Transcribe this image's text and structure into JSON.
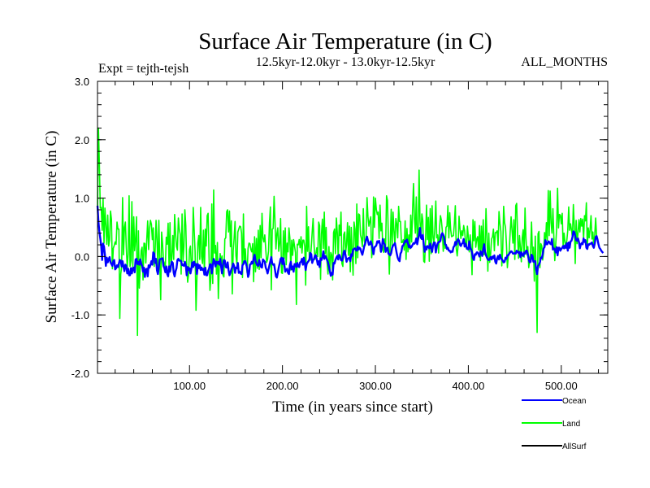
{
  "chart_data": {
    "type": "line",
    "title": "Surface Air Temperature (in C)",
    "subtitle_left": "Expt = tejth-tejsh",
    "subtitle_center": "12.5kyr-12.0kyr - 13.0kyr-12.5kyr",
    "subtitle_right": "ALL_MONTHS",
    "xlabel": "Time (in years since start)",
    "ylabel": "Surface Air Temperature (in C)",
    "xlim": [
      1,
      550
    ],
    "ylim": [
      -2.0,
      3.0
    ],
    "x_ticks": [
      100,
      200,
      300,
      400,
      500
    ],
    "x_tick_labels": [
      "100.00",
      "200.00",
      "300.00",
      "400.00",
      "500.00"
    ],
    "y_ticks": [
      -2.0,
      -1.0,
      0.0,
      1.0,
      2.0,
      3.0
    ],
    "y_tick_labels": [
      "-2.0",
      "-1.0",
      "0.0",
      "1.0",
      "2.0",
      "3.0"
    ],
    "legend_position": "bottom-right",
    "x_start": 1,
    "x_step": 1,
    "series": [
      {
        "name": "Land",
        "color": "#00ff00",
        "values": [
          0.79,
          2.2,
          1.6,
          0.83,
          0.84,
          0.45,
          1.0,
          0.23,
          0.83,
          0.54,
          0.21,
          0.71,
          0.18,
          0.28,
          0.78,
          0.64,
          -0.21,
          0.14,
          0.19,
          0.25,
          0.21,
          0.59,
          0.47,
          0.47,
          -1.06,
          -0.3,
          -0.17,
          1.01,
          0.03,
          0.5,
          0.59,
          0.15,
          -0.19,
          0.04,
          1.04,
          -0.17,
          -0.07,
          0.94,
          -0.2,
          0.68,
          0.1,
          0.3,
          0.68,
          -1.35,
          0.44,
          -0.54,
          -0.19,
          0.1,
          0.16,
          -0.4,
          0.23,
          0.22,
          -0.11,
          0.29,
          0.61,
          0.12,
          0.48,
          0.62,
          0.55,
          0.29,
          0.49,
          -0.17,
          0.1,
          0.62,
          0.28,
          -0.2,
          0.62,
          -0.1,
          -0.74,
          0.42,
          0.23,
          -0.07,
          -0.12,
          -0.18,
          0.33,
          0.21,
          0.57,
          -0.19,
          0.58,
          -0.23,
          -0.01,
          0.36,
          -0.05,
          0.72,
          0.4,
          0.17,
          0.11,
          0.66,
          0.47,
          0.38,
          -0.3,
          0.73,
          -0.08,
          0.17,
          0.8,
          0.53,
          -0.15,
          -0.44,
          -0.31,
          0.12,
          0.18,
          -0.18,
          -0.15,
          0.84,
          0.45,
          0.09,
          -0.92,
          -0.36,
          0.23,
          0.36,
          -0.05,
          0.84,
          0.0,
          -0.12,
          0.45,
          -0.31,
          0.47,
          0.18,
          0.7,
          0.74,
          0.0,
          -0.58,
          -0.36,
          0.9,
          -0.46,
          1.14,
          0.06,
          0.19,
          -0.3,
          0.24,
          -0.72,
          -0.17,
          0.05,
          -0.12,
          0.01,
          -0.32,
          -0.35,
          0.3,
          0.32,
          0.77,
          0.8,
          0.42,
          0.78,
          0.17,
          0.61,
          -0.64,
          0.1,
          0.31,
          0.6,
          0.01,
          -0.13,
          0.42,
          0.47,
          0.52,
          0.51,
          0.4,
          -0.36,
          0.73,
          -0.1,
          0.13,
          -0.14,
          -0.28,
          0.14,
          0.23,
          0.22,
          0.12,
          0.08,
          0.22,
          -0.43,
          0.34,
          -0.26,
          0.31,
          -0.2,
          0.45,
          -0.22,
          0.53,
          -0.02,
          0.74,
          0.32,
          0.25,
          0.37,
          0.13,
          -0.1,
          -0.05,
          0.09,
          0.57,
          0.85,
          -0.57,
          0.47,
          0.48,
          1.03,
          0.59,
          0.13,
          0.39,
          0.49,
          0.09,
          0.22,
          0.65,
          -0.28,
          -0.29,
          0.44,
          -0.03,
          0.49,
          -0.14,
          0.23,
          0.08,
          0.49,
          0.31,
          -0.23,
          0.28,
          0.02,
          0.29,
          0.18,
          0.07,
          -0.82,
          0.21,
          0.2,
          0.29,
          0.15,
          0.34,
          0.06,
          0.28,
          0.28,
          0.17,
          -0.49,
          0.86,
          0.09,
          0.51,
          -0.06,
          -0.06,
          0.16,
          0.42,
          0.65,
          0.2,
          -0.05,
          0.05,
          0.15,
          0.0,
          0.59,
          0.53,
          -0.39,
          0.39,
          0.64,
          0.14,
          0.76,
          0.05,
          0.5,
          -0.1,
          -0.3,
          0.17,
          -0.25,
          0.07,
          0.03,
          -0.4,
          0.41,
          0.47,
          0.05,
          0.66,
          0.41,
          -0.03,
          0.54,
          0.36,
          0.76,
          -0.12,
          -0.17,
          0.38,
          0.42,
          0.07,
          0.21,
          0.58,
          0.02,
          0.52,
          -0.26,
          0.5,
          0.08,
          -0.32,
          0.59,
          0.47,
          -0.12,
          0.9,
          -0.02,
          0.73,
          0.71,
          0.37,
          0.3,
          0.17,
          0.82,
          0.28,
          0.19,
          0.36,
          1.01,
          0.68,
          0.52,
          0.61,
          0.68,
          -0.02,
          0.16,
          1.02,
          0.5,
          1.0,
          0.81,
          0.72,
          0.76,
          0.31,
          0.88,
          0.44,
          0.57,
          0.12,
          0.07,
          0.3,
          0.15,
          1.04,
          0.96,
          0.28,
          -0.3,
          0.23,
          0.81,
          0.16,
          0.76,
          0.44,
          0.2,
          0.65,
          0.56,
          0.32,
          0.86,
          0.6,
          0.6,
          0.24,
          0.24,
          0.29,
          0.11,
          0.61,
          -0.05,
          0.48,
          0.08,
          0.37,
          0.13,
          0.71,
          0.25,
          0.79,
          1.25,
          0.65,
          0.4,
          1.02,
          0.3,
          0.33,
          1.48,
          0.61,
          0.36,
          0.73,
          0.62,
          -0.08,
          -0.1,
          0.29,
          0.88,
          0.29,
          0.67,
          -0.08,
          0.82,
          0.05,
          0.87,
          0.33,
          0.23,
          0.48,
          0.95,
          0.32,
          0.37,
          0.06,
          0.48,
          0.7,
          0.62,
          0.44,
          0.09,
          0.35,
          0.14,
          0.5,
          0.52,
          0.87,
          0.32,
          0.75,
          0.46,
          0.34,
          0.35,
          0.36,
          0.57,
          0.87,
          0.14,
          0.01,
          0.18,
          0.69,
          0.48,
          0.31,
          0.44,
          0.36,
          0.53,
          0.44,
          0.23,
          0.13,
          0.52,
          0.33,
          0.08,
          0.37,
          0.15,
          -0.31,
          0.63,
          0.27,
          0.6,
          0.16,
          0.3,
          0.34,
          0.11,
          0.53,
          -0.07,
          0.52,
          0.06,
          0.63,
          0.03,
          0.12,
          0.82,
          0.34,
          -0.25,
          0.4,
          -0.1,
          0.05,
          0.3,
          0.34,
          0.47,
          0.1,
          0.41,
          0.41,
          0.44,
          0.19,
          0.77,
          0.57,
          0.43,
          -0.16,
          0.12,
          0.86,
          0.58,
          0.5,
          0.21,
          -0.19,
          -0.0,
          0.1,
          0.41,
          0.68,
          0.45,
          0.23,
          0.63,
          -0.05,
          0.87,
          0.91,
          0.35,
          -0.03,
          0.36,
          0.16,
          -0.09,
          0.32,
          0.46,
          -0.01,
          0.83,
          0.31,
          0.03,
          0.17,
          -0.19,
          -0.07,
          0.1,
          0.59,
          0.02,
          0.16,
          -0.42,
          0.35,
          -0.3,
          -1.3,
          0.39,
          0.43,
          -0.19,
          0.22,
          0.18,
          -0.06,
          0.07,
          0.41,
          0.22,
          0.58,
          0.28,
          1.13,
          0.36,
          1.12,
          0.58,
          0.4,
          0.82,
          0.34,
          -0.07,
          0.2,
          0.48,
          1.17,
          0.49,
          0.72,
          0.71,
          0.56,
          0.74,
          0.17,
          0.4,
          0.25,
          0.16,
          0.28,
          0.45,
          0.85,
          0.45,
          0.56,
          0.45,
          0.33,
          0.89,
          0.52,
          -0.12,
          0.62,
          0.22,
          0.41,
          0.63,
          0.42,
          0.65,
          0.52,
          0.64,
          0.3,
          0.7,
          0.61,
          0.92,
          0.15,
          0.49,
          0.32,
          0.47,
          0.7,
          0.3,
          0.42,
          0.16,
          0.37,
          0.66,
          0.35
        ]
      },
      {
        "name": "Ocean",
        "color": "#0000ff",
        "values": [
          0.87,
          0.6,
          0.43,
          0.31,
          0.18,
          -0.06,
          0.22,
          0.17,
          0.03,
          -0.16,
          -0.02,
          -0.1,
          -0.05,
          -0.01,
          -0.1,
          -0.13,
          -0.16,
          -0.08,
          -0.06,
          -0.22,
          -0.2,
          -0.15,
          -0.18,
          -0.12,
          -0.06,
          -0.07,
          -0.17,
          -0.08,
          -0.18,
          -0.25,
          -0.14,
          -0.16,
          -0.29,
          -0.21,
          -0.32,
          -0.32,
          -0.2,
          -0.29,
          -0.2,
          -0.19,
          -0.27,
          -0.05,
          -0.04,
          -0.13,
          -0.09,
          -0.14,
          -0.05,
          -0.12,
          -0.16,
          -0.26,
          -0.19,
          -0.35,
          -0.22,
          -0.21,
          -0.34,
          -0.15,
          -0.19,
          -0.14,
          -0.08,
          -0.14,
          0.07,
          0.05,
          -0.11,
          -0.04,
          -0.24,
          -0.3,
          -0.18,
          -0.05,
          -0.04,
          -0.04,
          -0.03,
          -0.16,
          -0.2,
          -0.27,
          -0.17,
          -0.3,
          -0.34,
          -0.17,
          -0.26,
          -0.15,
          -0.09,
          -0.11,
          -0.28,
          -0.34,
          -0.25,
          -0.2,
          -0.06,
          -0.04,
          -0.07,
          -0.07,
          -0.08,
          -0.15,
          -0.14,
          -0.16,
          -0.09,
          -0.15,
          -0.32,
          -0.18,
          -0.23,
          -0.2,
          -0.29,
          -0.21,
          -0.1,
          -0.18,
          -0.09,
          -0.15,
          -0.13,
          -0.3,
          -0.13,
          -0.2,
          -0.15,
          -0.23,
          -0.19,
          -0.23,
          -0.21,
          -0.31,
          -0.19,
          -0.32,
          -0.32,
          -0.25,
          -0.21,
          -0.14,
          -0.13,
          -0.29,
          -0.17,
          -0.04,
          -0.08,
          -0.17,
          -0.09,
          -0.12,
          -0.09,
          -0.14,
          -0.04,
          -0.17,
          -0.29,
          -0.15,
          -0.06,
          -0.07,
          -0.18,
          -0.19,
          -0.1,
          -0.23,
          -0.32,
          -0.28,
          -0.22,
          -0.18,
          -0.12,
          -0.16,
          -0.28,
          -0.19,
          -0.2,
          -0.11,
          -0.28,
          -0.26,
          -0.29,
          -0.3,
          -0.15,
          -0.13,
          -0.08,
          -0.08,
          -0.13,
          -0.2,
          -0.35,
          -0.3,
          -0.14,
          -0.13,
          -0.09,
          -0.12,
          -0.03,
          0.03,
          -0.07,
          -0.12,
          -0.15,
          -0.16,
          -0.06,
          -0.12,
          -0.18,
          -0.19,
          -0.05,
          -0.07,
          -0.09,
          -0.19,
          -0.23,
          -0.29,
          -0.22,
          -0.15,
          -0.08,
          -0.01,
          -0.12,
          -0.14,
          -0.13,
          -0.23,
          -0.34,
          -0.36,
          -0.28,
          -0.19,
          -0.12,
          -0.04,
          -0.02,
          -0.13,
          -0.03,
          -0.14,
          -0.26,
          -0.23,
          -0.21,
          -0.28,
          -0.3,
          -0.15,
          -0.09,
          -0.22,
          -0.17,
          -0.26,
          -0.13,
          -0.13,
          -0.18,
          -0.11,
          -0.17,
          -0.18,
          -0.1,
          -0.09,
          -0.04,
          -0.14,
          -0.02,
          -0.11,
          -0.23,
          -0.13,
          -0.1,
          -0.08,
          -0.05,
          0.06,
          0.04,
          -0.11,
          -0.06,
          -0.04,
          0.02,
          0.02,
          -0.05,
          -0.14,
          -0.08,
          -0.18,
          -0.03,
          -0.06,
          -0.01,
          0.09,
          -0.04,
          0.01,
          -0.02,
          -0.06,
          -0.1,
          -0.17,
          -0.25,
          -0.33,
          -0.28,
          -0.31,
          -0.11,
          -0.12,
          -0.06,
          -0.02,
          0.01,
          -0.05,
          0.03,
          -0.0,
          -0.06,
          -0.07,
          -0.03,
          0.08,
          0.1,
          0.01,
          -0.09,
          -0.04,
          -0.03,
          -0.02,
          -0.08,
          0.04,
          0.01,
          0.12,
          0.13,
          0.14,
          0.11,
          0.1,
          0.17,
          0.12,
          0.15,
          0.13,
          0.07,
          0.03,
          0.1,
          0.18,
          0.22,
          0.3,
          0.34,
          0.27,
          0.2,
          0.21,
          0.26,
          0.21,
          0.13,
          0.04,
          0.16,
          0.17,
          0.19,
          0.26,
          0.24,
          0.27,
          0.21,
          0.08,
          0.16,
          0.3,
          0.23,
          0.21,
          0.08,
          0.14,
          0.15,
          0.05,
          0.04,
          0.02,
          0.06,
          0.15,
          0.19,
          0.2,
          0.23,
          0.14,
          0.05,
          -0.02,
          -0.06,
          -0.08,
          0.05,
          0.08,
          0.18,
          0.19,
          0.23,
          0.27,
          0.25,
          0.29,
          0.23,
          0.16,
          0.19,
          0.15,
          0.17,
          0.2,
          0.23,
          0.22,
          0.24,
          0.31,
          0.21,
          0.3,
          0.38,
          0.49,
          0.32,
          0.3,
          0.37,
          0.21,
          0.08,
          0.17,
          0.12,
          0.18,
          0.17,
          0.14,
          0.22,
          0.14,
          0.08,
          0.19,
          0.24,
          0.24,
          0.07,
          0.17,
          0.22,
          0.25,
          0.25,
          0.27,
          0.37,
          0.4,
          0.37,
          0.32,
          0.21,
          0.2,
          0.13,
          0.15,
          0.1,
          0.1,
          0.07,
          0.09,
          0.08,
          0.16,
          0.18,
          0.25,
          0.2,
          0.27,
          0.3,
          0.27,
          0.2,
          0.18,
          0.22,
          0.23,
          0.3,
          0.17,
          0.22,
          0.16,
          0.13,
          0.12,
          0.26,
          0.15,
          0.12,
          0.07,
          -0.03,
          -0.06,
          0.04,
          0.03,
          0.07,
          0.07,
          0.04,
          0.0,
          0.09,
          0.07,
          0.01,
          0.12,
          0.21,
          0.08,
          0.02,
          -0.02,
          -0.05,
          -0.06,
          -0.04,
          -0.01,
          -0.05,
          0.0,
          -0.03,
          0.02,
          -0.09,
          -0.12,
          -0.03,
          0.01,
          -0.05,
          0.03,
          -0.02,
          -0.05,
          -0.07,
          -0.1,
          -0.09,
          -0.02,
          -0.04,
          0.02,
          0.02,
          0.05,
          0.07,
          0.09,
          0.08,
          0.05,
          0.05,
          0.06,
          0.05,
          0.1,
          0.08,
          0.06,
          0.08,
          -0.01,
          0.07,
          0.03,
          0.01,
          0.07,
          0.05,
          0.1,
          0.1,
          0.04,
          -0.05,
          -0.1,
          -0.09,
          0.03,
          0.01,
          -0.09,
          -0.08,
          -0.08,
          -0.23,
          -0.3,
          -0.16,
          -0.14,
          -0.1,
          -0.02,
          -0.03,
          0.04,
          0.14,
          0.16,
          0.28,
          0.21,
          0.21,
          0.26,
          0.25,
          0.22,
          0.21,
          0.3,
          0.12,
          0.14,
          0.12,
          0.07,
          0.16,
          0.02,
          0.15,
          0.15,
          0.1,
          0.13,
          0.15,
          0.18,
          0.14,
          0.19,
          0.15,
          0.23,
          0.1,
          0.24,
          0.15,
          0.26,
          0.27,
          0.33,
          0.43,
          0.42,
          0.35,
          0.28,
          0.27,
          0.31,
          0.25,
          0.14,
          0.21,
          0.23,
          0.21,
          0.31,
          0.25,
          0.28,
          0.15,
          0.13,
          0.21,
          0.2,
          0.22,
          0.22,
          0.24,
          0.18,
          0.15,
          0.22,
          0.33,
          0.35,
          0.29,
          0.21,
          0.15,
          0.13,
          0.1,
          0.08,
          0.06
        ]
      },
      {
        "name": "AllSurf",
        "color": "#000000",
        "values": []
      }
    ]
  }
}
